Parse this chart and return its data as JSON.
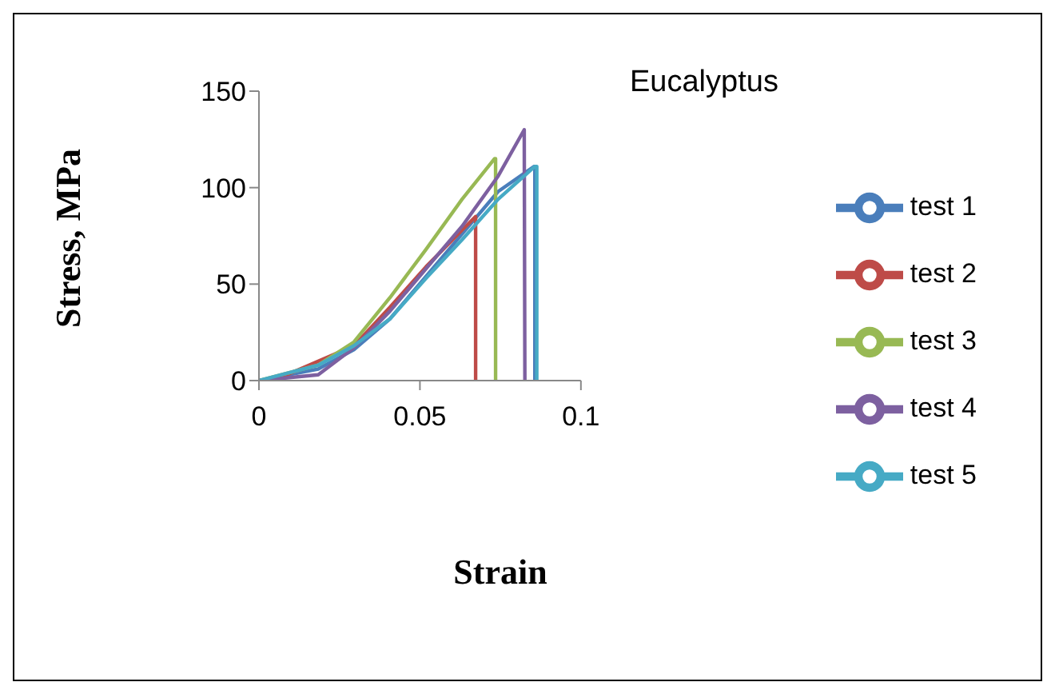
{
  "chart_data": {
    "type": "line",
    "title": "Eucalyptus",
    "xlabel": "Strain",
    "ylabel": "Stress, MPa",
    "xlim": [
      0,
      0.1
    ],
    "xticks": [
      0,
      0.05,
      0.1
    ],
    "ylim": [
      0,
      150
    ],
    "yticks": [
      0,
      50,
      100,
      150
    ],
    "grid": false,
    "legend": "right",
    "marker": "none",
    "series": [
      {
        "name": "test 1",
        "color": "#4a7ebb",
        "x": [
          0,
          0.0184,
          0.0295,
          0.0407,
          0.0519,
          0.0631,
          0.0743,
          0.0855,
          0.0857,
          0.0857
        ],
        "values": [
          0,
          6,
          16,
          32,
          54,
          76,
          98,
          111,
          111,
          0
        ]
      },
      {
        "name": "test 2",
        "color": "#be4b48",
        "x": [
          0,
          0.0072,
          0.0184,
          0.0295,
          0.0407,
          0.0519,
          0.0631,
          0.0673,
          0.0673
        ],
        "values": [
          0,
          2,
          10,
          18,
          38,
          59,
          78,
          85,
          0
        ]
      },
      {
        "name": "test 3",
        "color": "#98b954",
        "x": [
          0,
          0.0184,
          0.0295,
          0.0407,
          0.0519,
          0.0631,
          0.0732,
          0.0735,
          0.0735
        ],
        "values": [
          0,
          8,
          20,
          43,
          68,
          94,
          115,
          115,
          0
        ]
      },
      {
        "name": "test 4",
        "color": "#7d60a0",
        "x": [
          0,
          0.0184,
          0.0295,
          0.0407,
          0.0519,
          0.0631,
          0.0743,
          0.0824,
          0.0826
        ],
        "values": [
          0,
          3,
          17,
          36,
          58,
          80,
          106,
          130,
          0
        ]
      },
      {
        "name": "test 5",
        "color": "#46aac5",
        "x": [
          0,
          0.0184,
          0.0295,
          0.0407,
          0.0519,
          0.0631,
          0.0743,
          0.0857,
          0.0863,
          0.0863
        ],
        "values": [
          0,
          8,
          18,
          32,
          53,
          73,
          94,
          111,
          111,
          0
        ]
      }
    ]
  }
}
